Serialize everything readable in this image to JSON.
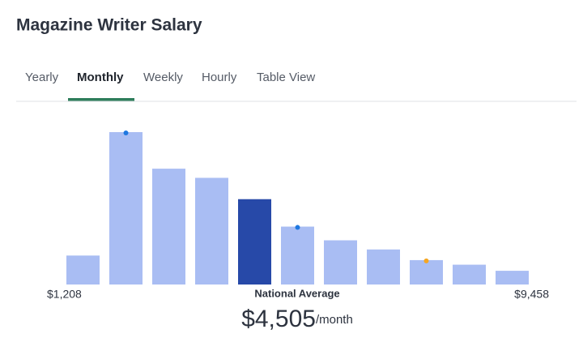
{
  "header": {
    "title": "Magazine Writer Salary"
  },
  "tabs": {
    "items": [
      "Yearly",
      "Monthly",
      "Weekly",
      "Hourly",
      "Table View"
    ],
    "active": 1
  },
  "chart_data": {
    "type": "bar",
    "values": [
      19,
      100,
      76,
      70,
      56,
      38,
      29,
      23,
      16,
      13,
      9
    ],
    "color": "#a9bdf3",
    "highlight_color": "#2749a8",
    "highlight": 4,
    "markers": [
      {
        "bar": 1,
        "color": "#1f78e0"
      },
      {
        "bar": 5,
        "color": "#1f78e0"
      },
      {
        "bar": 8,
        "color": "#f5a623"
      }
    ],
    "min_label": "$1,208",
    "max_label": "$9,458",
    "average_caption": "National Average",
    "average_value": "$4,505",
    "average_unit": "/month"
  }
}
